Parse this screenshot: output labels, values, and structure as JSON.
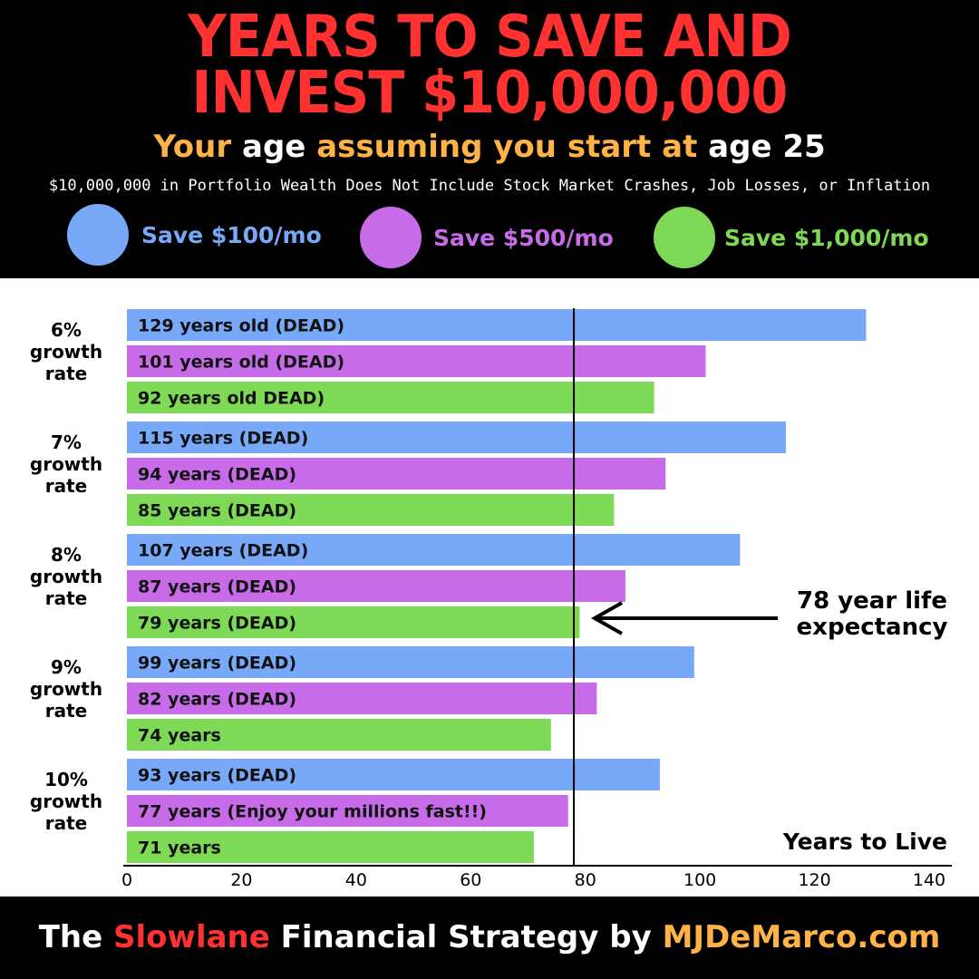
{
  "header": {
    "title_line1": "YEARS TO SAVE AND",
    "title_line2": "INVEST $10,000,000",
    "subtitle_part1": "Your",
    "subtitle_part2": "age",
    "subtitle_part3": "assuming you start at",
    "subtitle_part4": "age 25",
    "disclaimer": "$10,000,000 in Portfolio Wealth Does Not Include Stock Market Crashes, Job Losses, or Inflation"
  },
  "legend": [
    {
      "label": "Save $100/mo",
      "color": "#78a8f8"
    },
    {
      "label": "Save $500/mo",
      "color": "#c86be8"
    },
    {
      "label": "Save $1,000/mo",
      "color": "#7ed957"
    }
  ],
  "chart_data": {
    "type": "bar",
    "orientation": "horizontal",
    "xlabel": "Years to Live",
    "xlim": [
      0,
      140
    ],
    "xticks": [
      0,
      20,
      40,
      60,
      80,
      100,
      120,
      140
    ],
    "reference_line": {
      "value": 78,
      "label_line1": "78 year life",
      "label_line2": "expectancy"
    },
    "groups": [
      {
        "label_line1": "6%",
        "label_line2": "growth",
        "label_line3": "rate",
        "bars": [
          {
            "series": "Save $100/mo",
            "value": 129,
            "label": "129 years old (DEAD)"
          },
          {
            "series": "Save $500/mo",
            "value": 101,
            "label": "101 years old (DEAD)"
          },
          {
            "series": "Save $1,000/mo",
            "value": 92,
            "label": "92 years old DEAD)"
          }
        ]
      },
      {
        "label_line1": "7%",
        "label_line2": "growth",
        "label_line3": "rate",
        "bars": [
          {
            "series": "Save $100/mo",
            "value": 115,
            "label": "115 years (DEAD)"
          },
          {
            "series": "Save $500/mo",
            "value": 94,
            "label": "94 years (DEAD)"
          },
          {
            "series": "Save $1,000/mo",
            "value": 85,
            "label": "85 years (DEAD)"
          }
        ]
      },
      {
        "label_line1": "8%",
        "label_line2": "growth",
        "label_line3": "rate",
        "bars": [
          {
            "series": "Save $100/mo",
            "value": 107,
            "label": "107 years (DEAD)"
          },
          {
            "series": "Save $500/mo",
            "value": 87,
            "label": "87 years (DEAD)"
          },
          {
            "series": "Save $1,000/mo",
            "value": 79,
            "label": "79 years (DEAD)"
          }
        ]
      },
      {
        "label_line1": "9%",
        "label_line2": "growth",
        "label_line3": "rate",
        "bars": [
          {
            "series": "Save $100/mo",
            "value": 99,
            "label": "99 years (DEAD)"
          },
          {
            "series": "Save $500/mo",
            "value": 82,
            "label": "82 years (DEAD)"
          },
          {
            "series": "Save $1,000/mo",
            "value": 74,
            "label": "74 years"
          }
        ]
      },
      {
        "label_line1": "10%",
        "label_line2": "growth",
        "label_line3": "rate",
        "bars": [
          {
            "series": "Save $100/mo",
            "value": 93,
            "label": "93 years (DEAD)"
          },
          {
            "series": "Save $500/mo",
            "value": 77,
            "label": "77 years (Enjoy your millions fast!!)"
          },
          {
            "series": "Save $1,000/mo",
            "value": 71,
            "label": "71 years"
          }
        ]
      }
    ]
  },
  "footer": {
    "part1": "The",
    "part2": "Slowlane",
    "part3": "Financial Strategy by",
    "part4": "MJDeMarco.com"
  }
}
